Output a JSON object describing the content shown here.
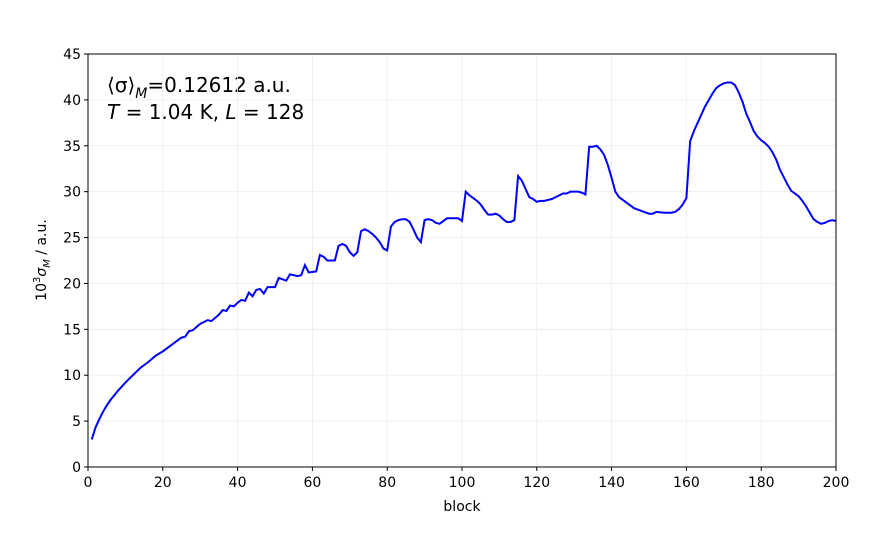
{
  "chart_data": {
    "type": "line",
    "annotation": [
      {
        "base": "⟨σ⟩",
        "sub": "M",
        "rest": "=0.12612 a.u."
      },
      {
        "a": "T",
        "b": " = 1.04 K, ",
        "c": "L",
        "d": " = 128"
      }
    ],
    "xlabel": "block",
    "ylabel": {
      "base": "10",
      "sup": "3",
      "sigma": "σ",
      "sub": "M",
      "rest": " / a.u."
    },
    "x": [
      1,
      2,
      3,
      4,
      5,
      6,
      8,
      10,
      12,
      14,
      16,
      18,
      20,
      22,
      24,
      25,
      26,
      27,
      28,
      30,
      32,
      33,
      35,
      36,
      37,
      38,
      39,
      40,
      41,
      42,
      43,
      44,
      45,
      46,
      47,
      48,
      50,
      51,
      53,
      54,
      56,
      57,
      58,
      59,
      61,
      62,
      63,
      64,
      66,
      67,
      68,
      69,
      70,
      71,
      72,
      73,
      74,
      75,
      76,
      77,
      78,
      79,
      80,
      81,
      82,
      83,
      84,
      85,
      86,
      87,
      88,
      89,
      90,
      91,
      92,
      93,
      94,
      95,
      96,
      97,
      99,
      100,
      101,
      102,
      103,
      104,
      105,
      106,
      107,
      108,
      109,
      110,
      111,
      112,
      113,
      114,
      115,
      116,
      117,
      118,
      119,
      120,
      121,
      122,
      124,
      126,
      127,
      128,
      129,
      131,
      132,
      133,
      134,
      135,
      136,
      137,
      138,
      139,
      140,
      141,
      142,
      143,
      144,
      145,
      146,
      148,
      150,
      151,
      152,
      154,
      156,
      157,
      158,
      159,
      160,
      161,
      162,
      163,
      164,
      165,
      166,
      167,
      168,
      169,
      170,
      171,
      172,
      173,
      174,
      175,
      176,
      177,
      178,
      179,
      180,
      181,
      182,
      183,
      184,
      185,
      186,
      187,
      188,
      189,
      190,
      191,
      192,
      193,
      194,
      195,
      196,
      197,
      198,
      199,
      200
    ],
    "series": [
      {
        "color": "#0000ff",
        "values": [
          3.0,
          4.3,
          5.2,
          6.0,
          6.7,
          7.3,
          8.3,
          9.2,
          10.0,
          10.8,
          11.4,
          12.1,
          12.6,
          13.2,
          13.8,
          14.1,
          14.2,
          14.8,
          14.9,
          15.6,
          16.0,
          15.9,
          16.6,
          17.1,
          17.0,
          17.6,
          17.5,
          17.9,
          18.2,
          18.1,
          19.0,
          18.6,
          19.3,
          19.4,
          18.9,
          19.6,
          19.6,
          20.6,
          20.3,
          21.0,
          20.8,
          20.9,
          22.0,
          21.2,
          21.3,
          23.1,
          22.9,
          22.5,
          22.5,
          24.1,
          24.3,
          24.1,
          23.4,
          23.0,
          23.4,
          25.7,
          25.9,
          25.7,
          25.4,
          25.0,
          24.5,
          23.8,
          23.6,
          26.2,
          26.7,
          26.9,
          27.0,
          27.0,
          26.7,
          25.9,
          25.0,
          24.5,
          26.9,
          27.0,
          26.9,
          26.6,
          26.5,
          26.8,
          27.1,
          27.1,
          27.1,
          26.8,
          30.0,
          29.6,
          29.3,
          29.0,
          28.6,
          28.0,
          27.5,
          27.5,
          27.6,
          27.4,
          27.0,
          26.7,
          26.7,
          26.9,
          31.7,
          31.2,
          30.3,
          29.4,
          29.2,
          28.9,
          29.0,
          29.0,
          29.2,
          29.6,
          29.8,
          29.8,
          30.0,
          30.0,
          29.9,
          29.7,
          34.9,
          34.9,
          35.0,
          34.6,
          34.0,
          32.9,
          31.5,
          30.0,
          29.4,
          29.1,
          28.8,
          28.5,
          28.2,
          27.9,
          27.6,
          27.6,
          27.8,
          27.7,
          27.7,
          27.8,
          28.1,
          28.6,
          29.3,
          35.5,
          36.6,
          37.5,
          38.4,
          39.3,
          40.0,
          40.7,
          41.3,
          41.6,
          41.8,
          41.9,
          41.9,
          41.6,
          40.8,
          39.8,
          38.5,
          37.6,
          36.6,
          36.0,
          35.6,
          35.3,
          34.9,
          34.3,
          33.5,
          32.4,
          31.6,
          30.8,
          30.1,
          29.8,
          29.5,
          29.0,
          28.4,
          27.7,
          27.0,
          26.7,
          26.5,
          26.6,
          26.8,
          26.9,
          26.8
        ]
      }
    ],
    "xlim": [
      0,
      200
    ],
    "xticks": [
      0,
      20,
      40,
      60,
      80,
      100,
      120,
      140,
      160,
      180,
      200
    ],
    "ylim": [
      0,
      45
    ],
    "yticks": [
      0,
      5,
      10,
      15,
      20,
      25,
      30,
      35,
      40,
      45
    ],
    "grid": true
  }
}
